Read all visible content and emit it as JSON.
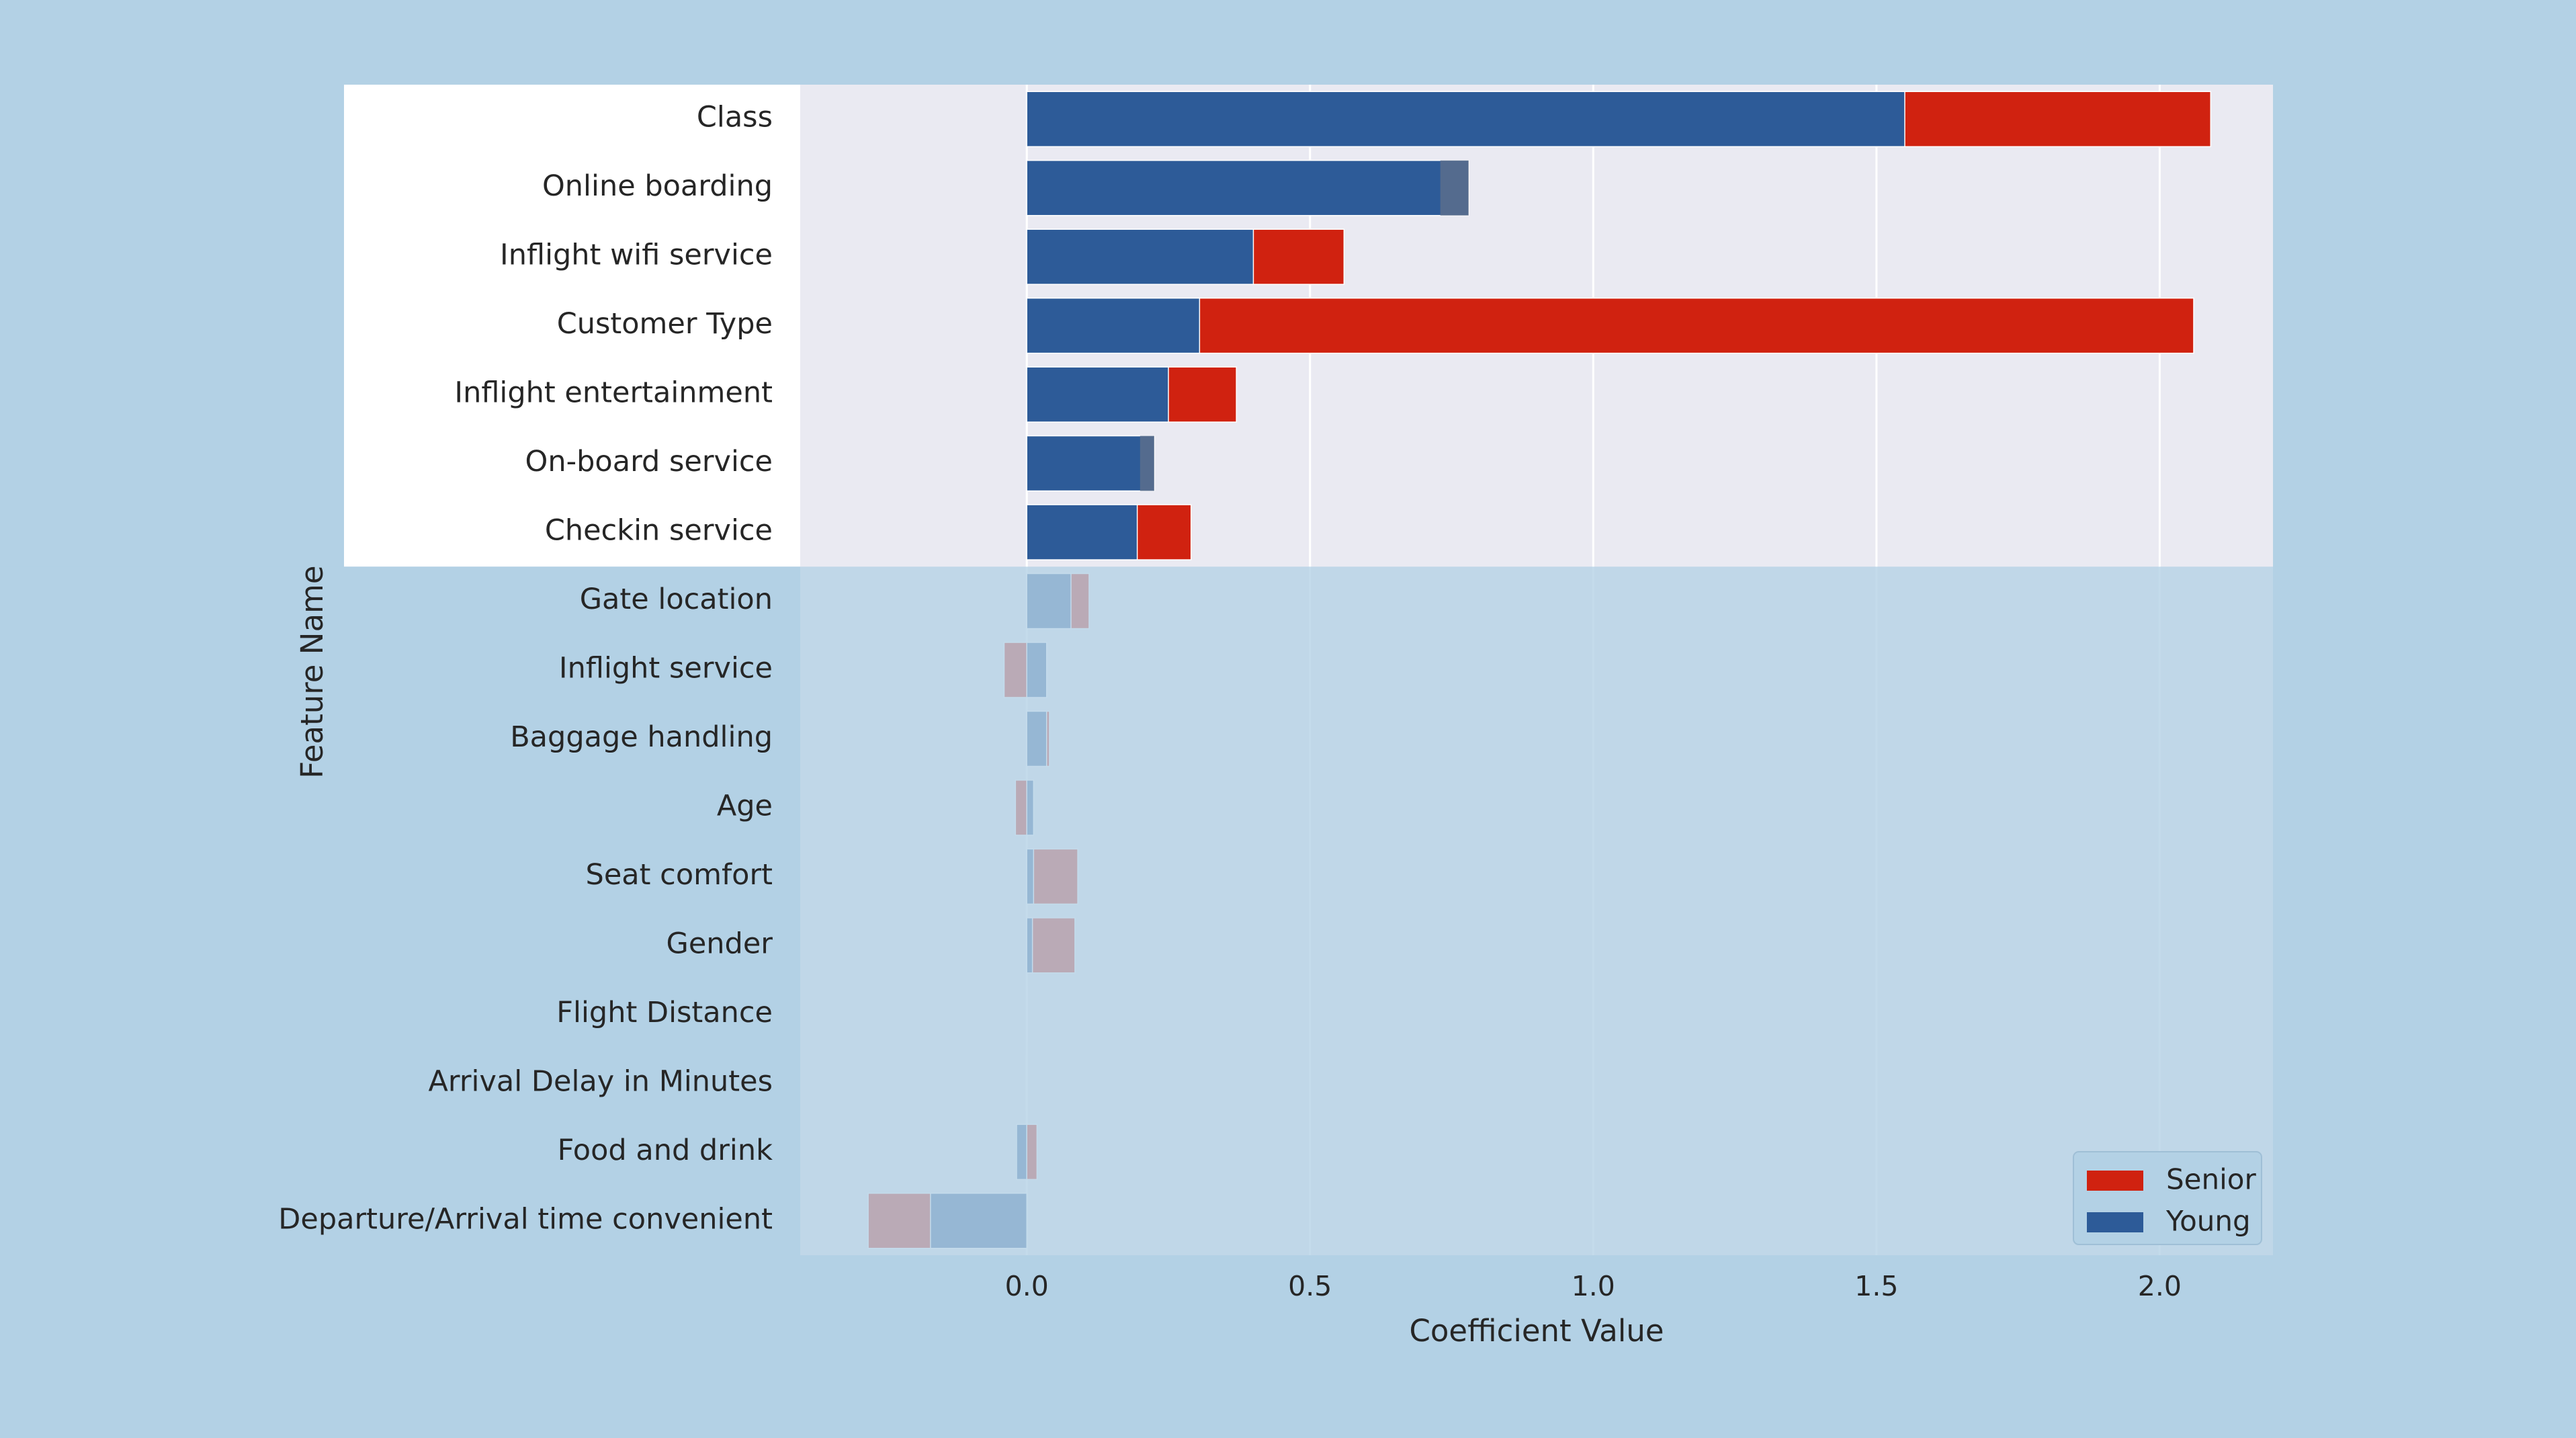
{
  "chart_data": {
    "type": "bar",
    "orientation": "horizontal",
    "title": "",
    "xlabel": "Coefficient Value",
    "ylabel": "Feature Name",
    "xlim": [
      -0.4,
      2.2
    ],
    "xticks": [
      0.0,
      0.5,
      1.0,
      1.5,
      2.0
    ],
    "xtick_labels": [
      "0.0",
      "0.5",
      "1.0",
      "1.5",
      "2.0"
    ],
    "grid": true,
    "legend_position": "bottom-right",
    "highlighted_categories": 7,
    "categories": [
      "Class",
      "Online boarding",
      "Inflight wifi service",
      "Customer Type",
      "Inflight entertainment",
      "On-board service",
      "Checkin service",
      "Gate location",
      "Inflight service",
      "Baggage handling",
      "Age",
      "Seat comfort",
      "Gender",
      "Flight Distance",
      "Arrival Delay in Minutes",
      "Food and drink",
      "Departure/Arrival time convenient"
    ],
    "series": [
      {
        "name": "Senior",
        "color": "#d02210",
        "values": [
          2.09,
          0.73,
          0.56,
          2.06,
          0.37,
          0.2,
          0.29,
          0.11,
          -0.04,
          0.04,
          -0.02,
          0.09,
          0.085,
          0.0,
          -0.001,
          0.018,
          -0.28
        ]
      },
      {
        "name": "Young",
        "color": "#2d5b98",
        "values": [
          1.55,
          0.78,
          0.4,
          0.305,
          0.25,
          0.225,
          0.195,
          0.078,
          0.035,
          0.035,
          0.012,
          0.012,
          0.01,
          0.001,
          0.0,
          -0.018,
          -0.17
        ]
      }
    ],
    "legend": [
      "Senior",
      "Young"
    ]
  },
  "colors": {
    "background": "#b3d1e5",
    "plot_background": "#eaeaf2",
    "highlight_label_band": "#ffffff",
    "dim_overlay": "#b3d1e5",
    "grid": "#ffffff",
    "text": "#262626"
  }
}
